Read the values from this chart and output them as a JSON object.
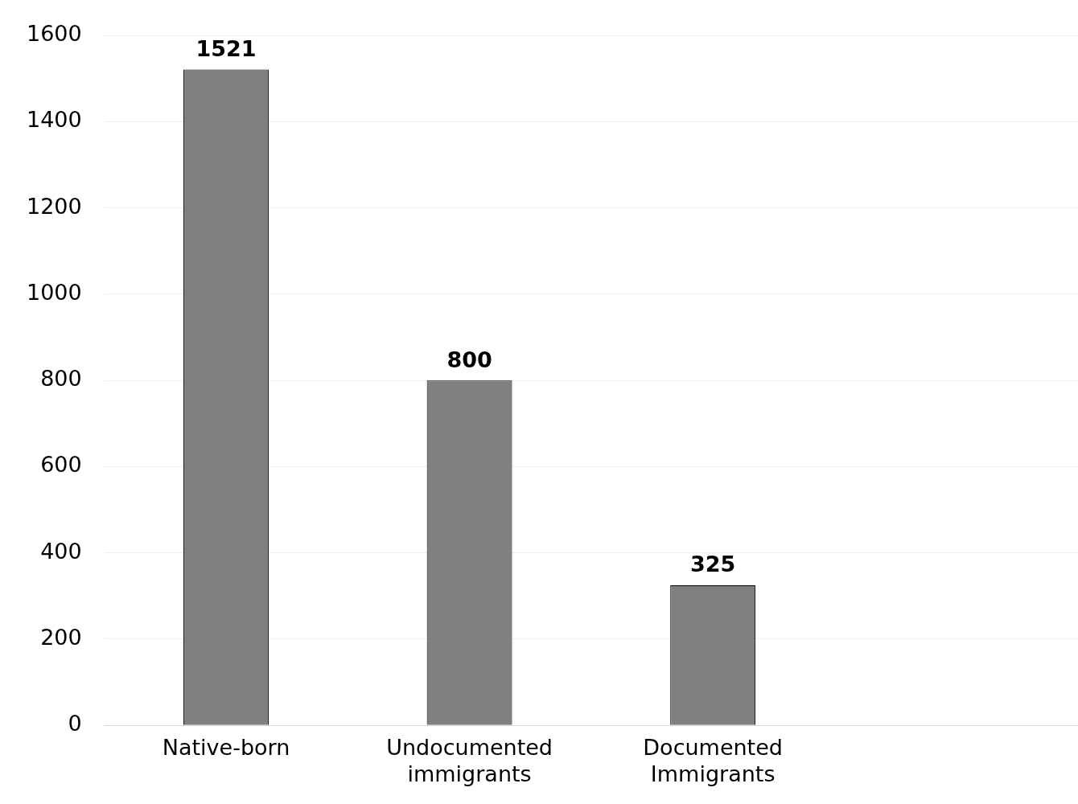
{
  "chart_data": {
    "type": "bar",
    "categories": [
      "Native-born",
      "Undocumented immigrants",
      "Documented Immigrants",
      null
    ],
    "values": [
      1521,
      800,
      325,
      null
    ],
    "color": "#808080",
    "ylim": [
      0,
      1600
    ],
    "yticks": [
      0,
      200,
      400,
      600,
      800,
      1000,
      1200,
      1400,
      1600
    ],
    "grid": "y",
    "legend": false,
    "data_labels": true
  }
}
